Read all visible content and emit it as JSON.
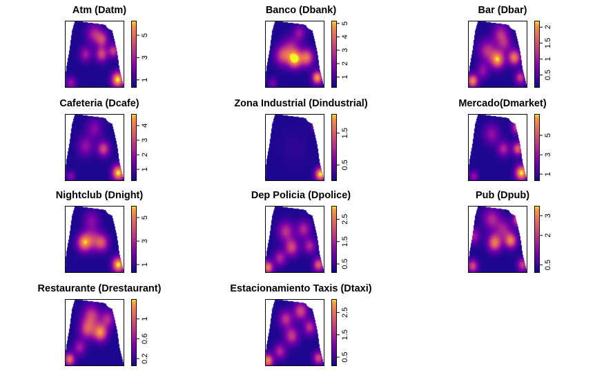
{
  "chart_data": [
    {
      "type": "heatmap",
      "title": "Atm (Datm)",
      "colorbar": {
        "range": [
          0.3,
          6.3
        ],
        "ticks": [
          1,
          3,
          5
        ],
        "tick_labels": [
          "1",
          "3",
          "5"
        ]
      },
      "hotspots": [
        {
          "u": 0.5,
          "v": 0.2,
          "s": 0.09,
          "w": 0.45
        },
        {
          "u": 0.62,
          "v": 0.5,
          "s": 0.07,
          "w": 0.6
        },
        {
          "u": 0.35,
          "v": 0.5,
          "s": 0.07,
          "w": 0.4
        },
        {
          "u": 0.63,
          "v": 0.28,
          "s": 0.07,
          "w": 0.5
        },
        {
          "u": 0.82,
          "v": 0.45,
          "s": 0.06,
          "w": 0.55
        },
        {
          "u": 0.89,
          "v": 0.88,
          "s": 0.07,
          "w": 1.0
        },
        {
          "u": 0.1,
          "v": 0.93,
          "s": 0.06,
          "w": 0.35
        }
      ]
    },
    {
      "type": "heatmap",
      "title": "Banco (Dbank)",
      "colorbar": {
        "range": [
          0.2,
          5.2
        ],
        "ticks": [
          1,
          2,
          3,
          4,
          5
        ],
        "tick_labels": [
          "1",
          "2",
          "3",
          "4",
          "5"
        ]
      },
      "hotspots": [
        {
          "u": 0.5,
          "v": 0.58,
          "s": 0.08,
          "w": 0.95
        },
        {
          "u": 0.3,
          "v": 0.52,
          "s": 0.09,
          "w": 0.6
        },
        {
          "u": 0.7,
          "v": 0.55,
          "s": 0.08,
          "w": 0.75
        },
        {
          "u": 0.45,
          "v": 0.4,
          "s": 0.1,
          "w": 0.4
        },
        {
          "u": 0.58,
          "v": 0.18,
          "s": 0.07,
          "w": 0.35
        },
        {
          "u": 0.88,
          "v": 0.85,
          "s": 0.06,
          "w": 0.9
        },
        {
          "u": 0.13,
          "v": 0.93,
          "s": 0.05,
          "w": 0.25
        }
      ]
    },
    {
      "type": "heatmap",
      "title": "Bar (Dbar)",
      "colorbar": {
        "range": [
          0.1,
          2.2
        ],
        "ticks": [
          0.5,
          1,
          1.5,
          2
        ],
        "tick_labels": [
          "0.5",
          "1",
          "1.5",
          "2"
        ]
      },
      "hotspots": [
        {
          "u": 0.5,
          "v": 0.58,
          "s": 0.08,
          "w": 0.9
        },
        {
          "u": 0.78,
          "v": 0.55,
          "s": 0.07,
          "w": 0.8
        },
        {
          "u": 0.33,
          "v": 0.45,
          "s": 0.1,
          "w": 0.5
        },
        {
          "u": 0.55,
          "v": 0.2,
          "s": 0.09,
          "w": 0.45
        },
        {
          "u": 0.62,
          "v": 0.35,
          "s": 0.08,
          "w": 0.35
        },
        {
          "u": 0.08,
          "v": 0.9,
          "s": 0.06,
          "w": 0.85
        },
        {
          "u": 0.25,
          "v": 0.75,
          "s": 0.07,
          "w": 0.35
        },
        {
          "u": 0.88,
          "v": 0.85,
          "s": 0.06,
          "w": 0.55
        }
      ]
    },
    {
      "type": "heatmap",
      "title": "Cafeteria (Dcafe)",
      "colorbar": {
        "range": [
          0.2,
          4.8
        ],
        "ticks": [
          1,
          2,
          3,
          4
        ],
        "tick_labels": [
          "1",
          "2",
          "3",
          "4"
        ]
      },
      "hotspots": [
        {
          "u": 0.65,
          "v": 0.52,
          "s": 0.07,
          "w": 0.6
        },
        {
          "u": 0.35,
          "v": 0.48,
          "s": 0.09,
          "w": 0.35
        },
        {
          "u": 0.5,
          "v": 0.22,
          "s": 0.09,
          "w": 0.3
        },
        {
          "u": 0.9,
          "v": 0.88,
          "s": 0.07,
          "w": 1.0
        },
        {
          "u": 0.1,
          "v": 0.93,
          "s": 0.05,
          "w": 0.3
        }
      ]
    },
    {
      "type": "heatmap",
      "title": "Zona Industrial (Dindustrial)",
      "colorbar": {
        "range": [
          0.0,
          2.1
        ],
        "ticks": [
          0.5,
          1.5
        ],
        "tick_labels": [
          "0.5",
          "1.5"
        ]
      },
      "hotspots": [
        {
          "u": 0.93,
          "v": 0.9,
          "s": 0.06,
          "w": 1.0
        },
        {
          "u": 0.88,
          "v": 0.18,
          "s": 0.05,
          "w": 0.55
        },
        {
          "u": 0.5,
          "v": 0.5,
          "s": 0.15,
          "w": 0.05
        }
      ]
    },
    {
      "type": "heatmap",
      "title": "Mercado(Dmarket)",
      "colorbar": {
        "range": [
          0.3,
          7.2
        ],
        "ticks": [
          1,
          3,
          5
        ],
        "tick_labels": [
          "1",
          "3",
          "5"
        ]
      },
      "hotspots": [
        {
          "u": 0.6,
          "v": 0.52,
          "s": 0.07,
          "w": 0.45
        },
        {
          "u": 0.84,
          "v": 0.52,
          "s": 0.06,
          "w": 0.7
        },
        {
          "u": 0.82,
          "v": 0.2,
          "s": 0.06,
          "w": 0.55
        },
        {
          "u": 0.4,
          "v": 0.3,
          "s": 0.09,
          "w": 0.35
        },
        {
          "u": 0.9,
          "v": 0.88,
          "s": 0.07,
          "w": 1.0
        },
        {
          "u": 0.1,
          "v": 0.93,
          "s": 0.05,
          "w": 0.35
        }
      ]
    },
    {
      "type": "heatmap",
      "title": "Nightclub (Dnight)",
      "colorbar": {
        "range": [
          0.3,
          6.0
        ],
        "ticks": [
          1,
          3,
          5
        ],
        "tick_labels": [
          "1",
          "3",
          "5"
        ]
      },
      "hotspots": [
        {
          "u": 0.32,
          "v": 0.55,
          "s": 0.08,
          "w": 0.75
        },
        {
          "u": 0.62,
          "v": 0.55,
          "s": 0.08,
          "w": 0.6
        },
        {
          "u": 0.45,
          "v": 0.5,
          "s": 0.1,
          "w": 0.45
        },
        {
          "u": 0.45,
          "v": 0.22,
          "s": 0.09,
          "w": 0.3
        },
        {
          "u": 0.9,
          "v": 0.88,
          "s": 0.07,
          "w": 1.0
        }
      ]
    },
    {
      "type": "heatmap",
      "title": "Dep Policia (Dpolice)",
      "colorbar": {
        "range": [
          0.1,
          3.1
        ],
        "ticks": [
          0.5,
          1.5,
          2.5
        ],
        "tick_labels": [
          "0.5",
          "1.5",
          "2.5"
        ]
      },
      "hotspots": [
        {
          "u": 0.35,
          "v": 0.38,
          "s": 0.09,
          "w": 0.5
        },
        {
          "u": 0.65,
          "v": 0.35,
          "s": 0.08,
          "w": 0.45
        },
        {
          "u": 0.45,
          "v": 0.62,
          "s": 0.08,
          "w": 0.6
        },
        {
          "u": 0.75,
          "v": 0.6,
          "s": 0.07,
          "w": 0.45
        },
        {
          "u": 0.25,
          "v": 0.78,
          "s": 0.07,
          "w": 0.45
        },
        {
          "u": 0.05,
          "v": 0.92,
          "s": 0.06,
          "w": 0.8
        },
        {
          "u": 0.9,
          "v": 0.88,
          "s": 0.06,
          "w": 0.7
        }
      ]
    },
    {
      "type": "heatmap",
      "title": "Pub (Dpub)",
      "colorbar": {
        "range": [
          0.1,
          3.5
        ],
        "ticks": [
          0.5,
          2,
          3
        ],
        "tick_labels": [
          "0.5",
          "2",
          "3"
        ]
      },
      "hotspots": [
        {
          "u": 0.45,
          "v": 0.55,
          "s": 0.08,
          "w": 0.8
        },
        {
          "u": 0.72,
          "v": 0.52,
          "s": 0.07,
          "w": 0.8
        },
        {
          "u": 0.85,
          "v": 0.2,
          "s": 0.06,
          "w": 0.8
        },
        {
          "u": 0.4,
          "v": 0.2,
          "s": 0.1,
          "w": 0.45
        },
        {
          "u": 0.6,
          "v": 0.35,
          "s": 0.09,
          "w": 0.4
        },
        {
          "u": 0.1,
          "v": 0.45,
          "s": 0.07,
          "w": 0.4
        },
        {
          "u": 0.08,
          "v": 0.9,
          "s": 0.06,
          "w": 0.6
        },
        {
          "u": 0.92,
          "v": 0.88,
          "s": 0.06,
          "w": 0.55
        }
      ]
    },
    {
      "type": "heatmap",
      "title": "Restaurante (Drestaurant)",
      "colorbar": {
        "range": [
          0.05,
          1.4
        ],
        "ticks": [
          0.2,
          0.6,
          1
        ],
        "tick_labels": [
          "0.2",
          "0.6",
          "1"
        ]
      },
      "hotspots": [
        {
          "u": 0.6,
          "v": 0.5,
          "s": 0.08,
          "w": 0.85
        },
        {
          "u": 0.38,
          "v": 0.45,
          "s": 0.09,
          "w": 0.6
        },
        {
          "u": 0.45,
          "v": 0.25,
          "s": 0.1,
          "w": 0.55
        },
        {
          "u": 0.72,
          "v": 0.3,
          "s": 0.08,
          "w": 0.45
        },
        {
          "u": 0.08,
          "v": 0.9,
          "s": 0.06,
          "w": 0.75
        },
        {
          "u": 0.25,
          "v": 0.72,
          "s": 0.07,
          "w": 0.4
        }
      ]
    },
    {
      "type": "heatmap",
      "title": "Estacionamiento Taxis (Dtaxi)",
      "colorbar": {
        "range": [
          0.1,
          3.1
        ],
        "ticks": [
          0.5,
          1.5,
          2.5
        ],
        "tick_labels": [
          "0.5",
          "1.5",
          "2.5"
        ]
      },
      "hotspots": [
        {
          "u": 0.6,
          "v": 0.18,
          "s": 0.08,
          "w": 0.6
        },
        {
          "u": 0.35,
          "v": 0.3,
          "s": 0.08,
          "w": 0.5
        },
        {
          "u": 0.45,
          "v": 0.55,
          "s": 0.08,
          "w": 0.55
        },
        {
          "u": 0.75,
          "v": 0.42,
          "s": 0.07,
          "w": 0.5
        },
        {
          "u": 0.25,
          "v": 0.78,
          "s": 0.07,
          "w": 0.45
        },
        {
          "u": 0.05,
          "v": 0.92,
          "s": 0.06,
          "w": 0.85
        },
        {
          "u": 0.9,
          "v": 0.88,
          "s": 0.06,
          "w": 0.6
        }
      ]
    }
  ],
  "colors": {
    "low": "#0d0887",
    "mid": "#cc4778",
    "high": "#f0f921",
    "outside": "#ffffff"
  }
}
